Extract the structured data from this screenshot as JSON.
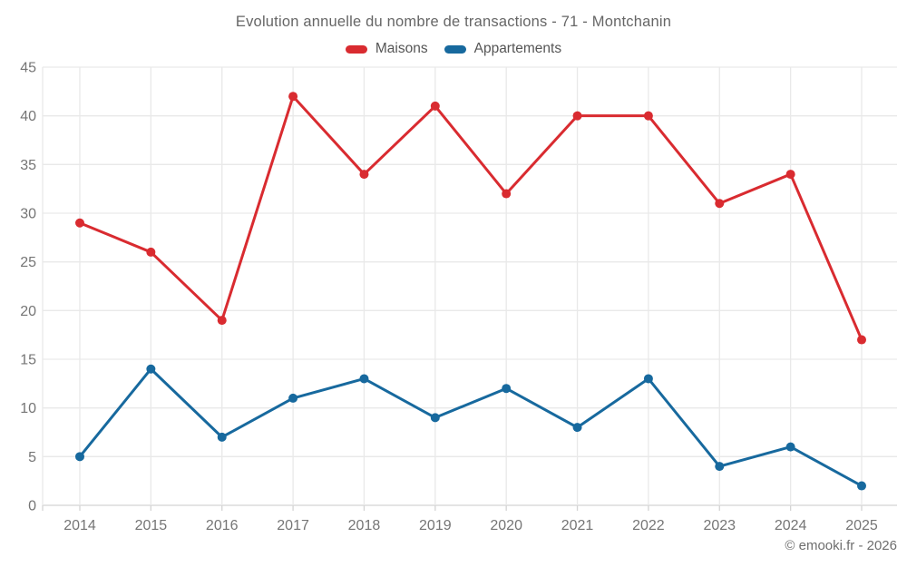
{
  "chart_data": {
    "type": "line",
    "title": "Evolution annuelle du nombre de transactions - 71 - Montchanin",
    "categories": [
      "2014",
      "2015",
      "2016",
      "2017",
      "2018",
      "2019",
      "2020",
      "2021",
      "2022",
      "2023",
      "2024",
      "2025"
    ],
    "series": [
      {
        "name": "Maisons",
        "color": "#d92b30",
        "values": [
          29,
          26,
          19,
          42,
          34,
          41,
          32,
          40,
          40,
          31,
          34,
          17
        ]
      },
      {
        "name": "Appartements",
        "color": "#17699e",
        "values": [
          5,
          14,
          7,
          11,
          13,
          9,
          12,
          8,
          13,
          4,
          6,
          2
        ]
      }
    ],
    "ylim": [
      0,
      45
    ],
    "yticks": [
      0,
      5,
      10,
      15,
      20,
      25,
      30,
      35,
      40,
      45
    ],
    "grid": true,
    "legend_position": "top",
    "xlabel": "",
    "ylabel": ""
  },
  "legend": {
    "maisons_label": "Maisons",
    "appartements_label": "Appartements"
  },
  "footer": {
    "copyright": "© emooki.fr - 2026"
  },
  "colors": {
    "maisons": "#d92b30",
    "appartements": "#17699e",
    "gridline": "#e9e9e9",
    "axis_line": "#d4d4d4",
    "tick_label": "#757575",
    "title_text": "#666666",
    "legend_text": "#555555",
    "footer_text": "#6e6e6e"
  }
}
